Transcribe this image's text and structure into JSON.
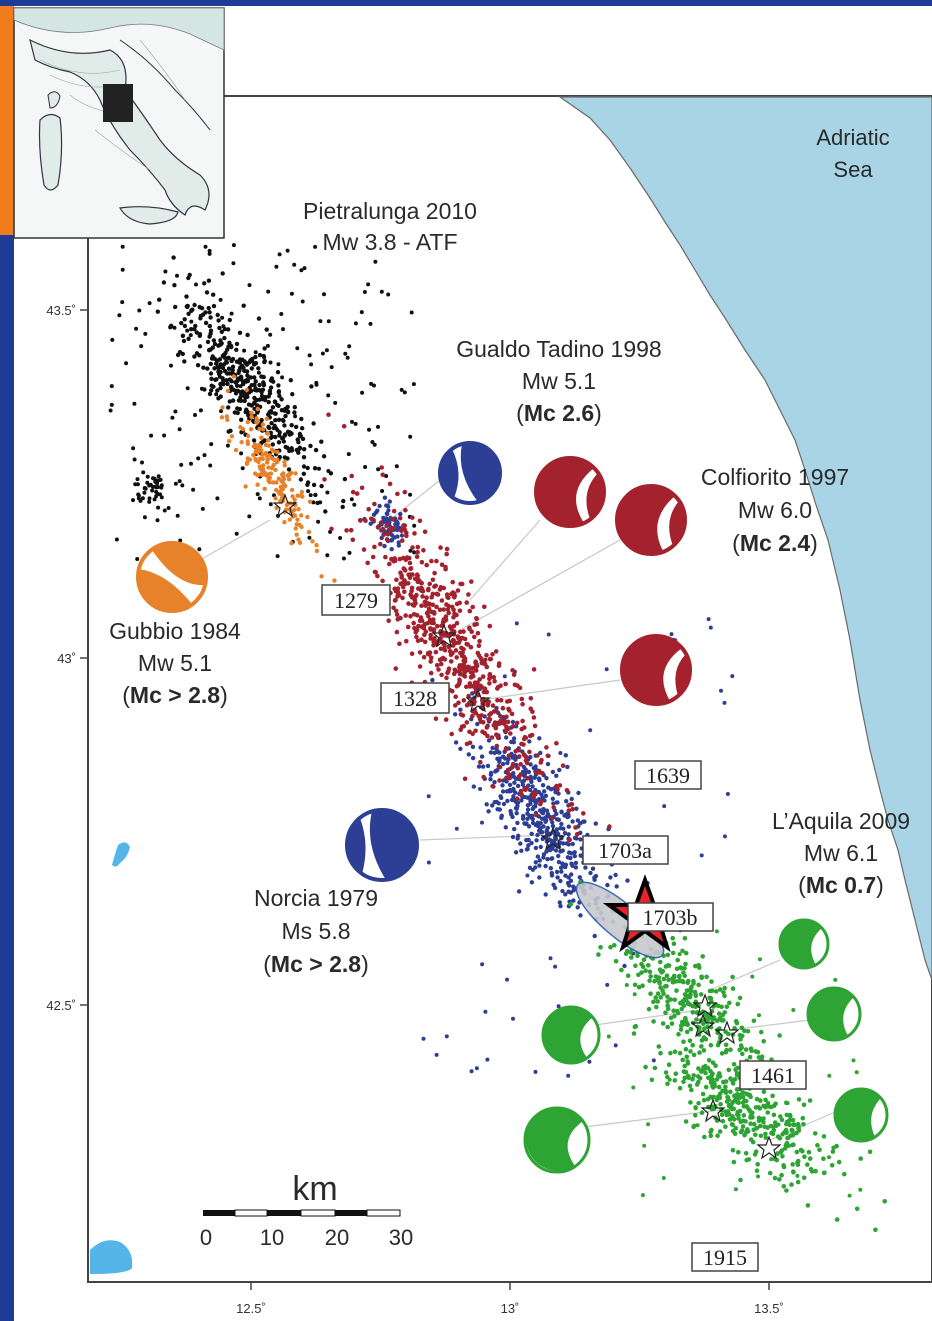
{
  "colors": {
    "sea": "#a8d4e6",
    "lake": "#55b4e8",
    "black_events": "#111111",
    "orange_events": "#e8822a",
    "blue_events": "#2c3f95",
    "red_events": "#a3222e",
    "green_events": "#2da433",
    "edge_orange": "#f07c1c",
    "edge_blue": "#1e3c96"
  },
  "sea_label": [
    "Adriatic",
    "Sea"
  ],
  "x_ticks": [
    "12.5˚",
    "13˚",
    "13.5˚"
  ],
  "y_ticks": [
    "43.5˚",
    "43˚",
    "42.5˚"
  ],
  "sequences": [
    {
      "lines": [
        "Pietralunga 2010",
        "Mw 3.8 - ATF"
      ],
      "bold_line": null
    },
    {
      "lines": [
        "Gualdo Tadino 1998",
        "Mw 5.1",
        "(Mc 2.6)"
      ],
      "bold_line": "Mc 2.6"
    },
    {
      "lines": [
        "Colfiorito 1997",
        "Mw 6.0",
        "(Mc 2.4)"
      ],
      "bold_line": "Mc 2.4"
    },
    {
      "lines": [
        "Gubbio 1984",
        "Mw 5.1",
        "(Mc > 2.8)"
      ],
      "bold_line": "Mc > 2.8"
    },
    {
      "lines": [
        "Norcia 1979",
        "Ms 5.8",
        "(Mc > 2.8)"
      ],
      "bold_line": "Mc > 2.8"
    },
    {
      "lines": [
        "L’Aquila 2009",
        "Mw 6.1",
        "(Mc 0.7)"
      ],
      "bold_line": "Mc 0.7"
    }
  ],
  "historic_events": [
    "1279",
    "1328",
    "1639",
    "1703a",
    "1703b",
    "1461",
    "1915"
  ],
  "scale_bar": {
    "unit": "km",
    "ticks": [
      "0",
      "10",
      "20",
      "30"
    ]
  },
  "inset": {
    "region": "Italy"
  }
}
